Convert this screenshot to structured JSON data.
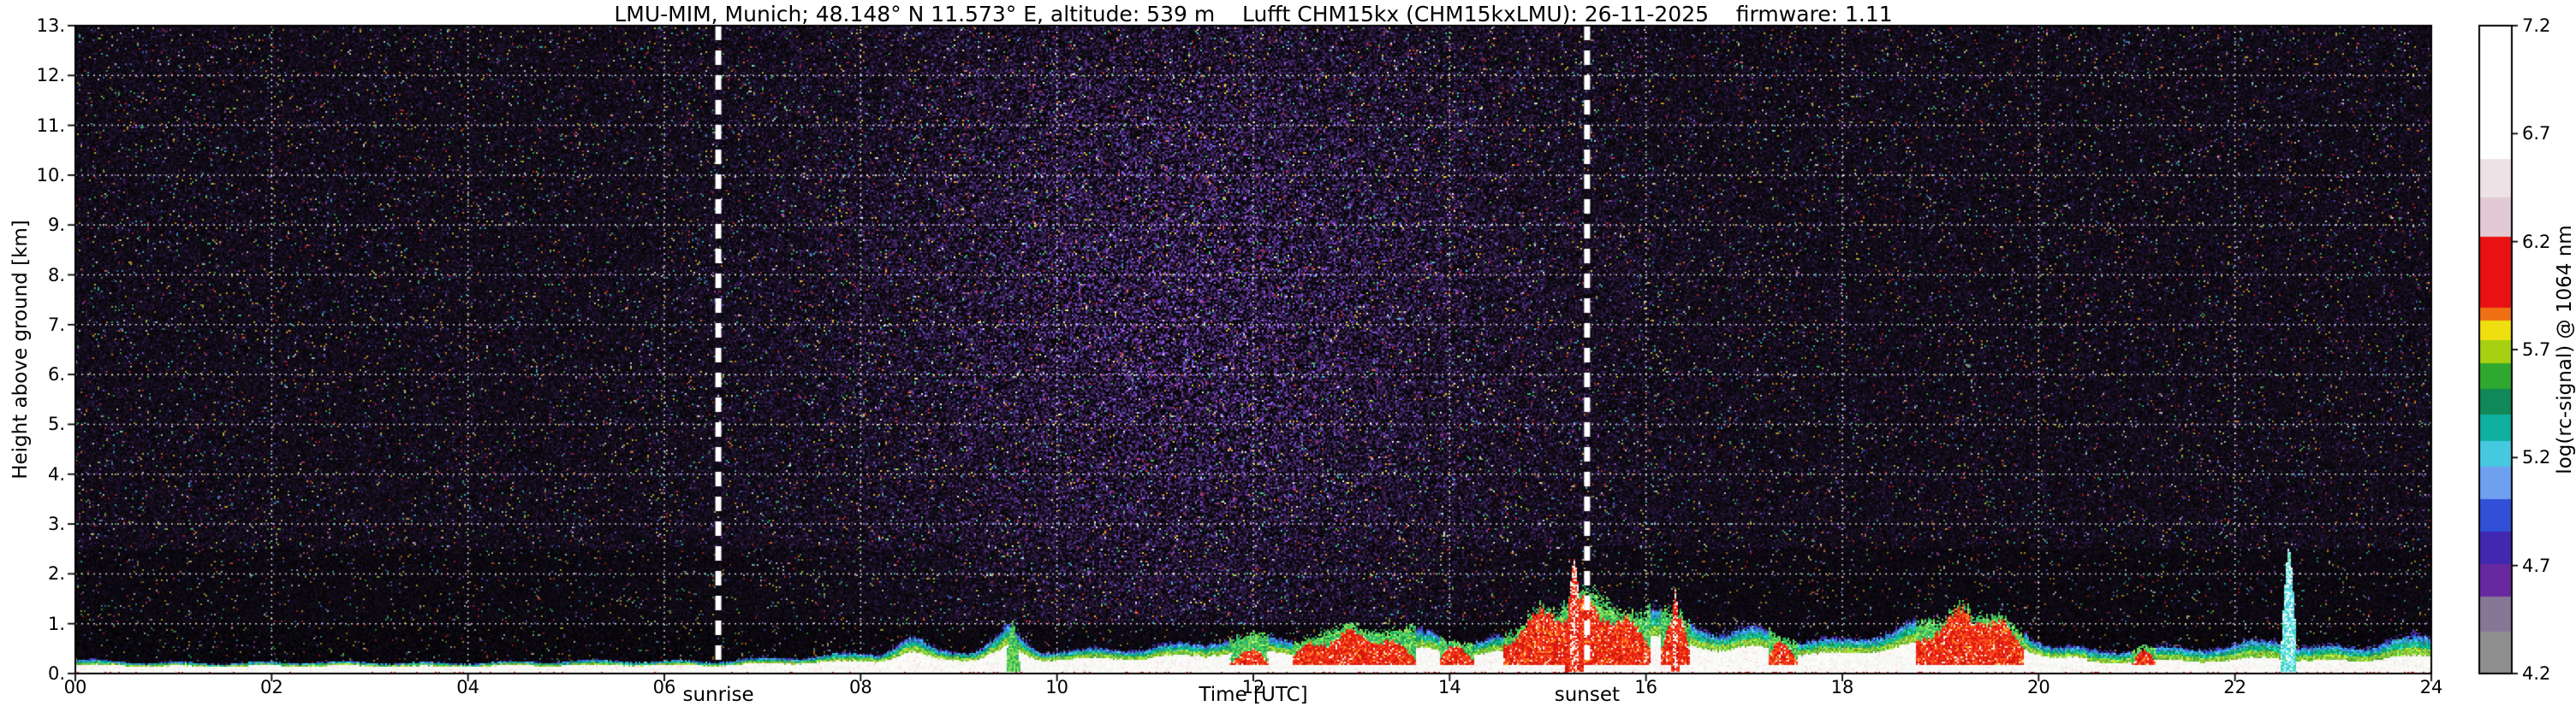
{
  "title": "LMU-MIM, Munich; 48.148° N 11.573° E, altitude: 539 m    Lufft CHM15kx (CHM15kxLMU): 26-11-2025    firmware: 1.11",
  "chart_data": {
    "type": "heatmap",
    "title": "LMU-MIM, Munich; 48.148° N 11.573° E, altitude: 539 m    Lufft CHM15kx (CHM15kxLMU): 26-11-2025    firmware: 1.11",
    "xlabel": "Time [UTC]",
    "ylabel": "Height above ground [km]",
    "xlim": [
      0,
      24
    ],
    "ylim": [
      0,
      13
    ],
    "grid": true,
    "xticks": [
      "00",
      "02",
      "04",
      "06",
      "08",
      "10",
      "12",
      "14",
      "16",
      "18",
      "20",
      "22",
      "24"
    ],
    "yticks": [
      "0.",
      "1.",
      "2.",
      "3.",
      "4.",
      "5.",
      "6.",
      "7.",
      "8.",
      "9.",
      "10.",
      "11.",
      "12.",
      "13."
    ],
    "annotations": [
      {
        "label": "sunrise",
        "x": 6.55
      },
      {
        "label": "sunset",
        "x": 15.4
      }
    ],
    "colorbar": {
      "label": "log(rc-signal) @ 1064 nm",
      "range": [
        4.2,
        7.2
      ],
      "ticks": [
        7.2,
        6.7,
        6.2,
        5.7,
        5.2,
        4.7,
        4.2
      ],
      "segments": [
        {
          "from": 0.795,
          "to": 1.0,
          "color": "#ffffff"
        },
        {
          "from": 0.735,
          "to": 0.795,
          "color": "#efe2e6"
        },
        {
          "from": 0.675,
          "to": 0.735,
          "color": "#e3c9d3"
        },
        {
          "from": 0.565,
          "to": 0.675,
          "color": "#e81212"
        },
        {
          "from": 0.545,
          "to": 0.565,
          "color": "#ef7012"
        },
        {
          "from": 0.515,
          "to": 0.545,
          "color": "#efdf10"
        },
        {
          "from": 0.48,
          "to": 0.515,
          "color": "#a6d012"
        },
        {
          "from": 0.44,
          "to": 0.48,
          "color": "#2fa830"
        },
        {
          "from": 0.4,
          "to": 0.44,
          "color": "#108858"
        },
        {
          "from": 0.36,
          "to": 0.4,
          "color": "#10b0a0"
        },
        {
          "from": 0.32,
          "to": 0.36,
          "color": "#46c8e0"
        },
        {
          "from": 0.27,
          "to": 0.32,
          "color": "#6f9fef"
        },
        {
          "from": 0.22,
          "to": 0.27,
          "color": "#3050d8"
        },
        {
          "from": 0.17,
          "to": 0.22,
          "color": "#4028b0"
        },
        {
          "from": 0.12,
          "to": 0.17,
          "color": "#6828a0"
        },
        {
          "from": 0.065,
          "to": 0.12,
          "color": "#877797"
        },
        {
          "from": 0.0,
          "to": 0.065,
          "color": "#8f8f8f"
        }
      ]
    },
    "features": {
      "description": "Aerosol boundary-layer top height [km] vs time [UTC], estimated from backscatter image",
      "layer_top": [
        [
          0,
          0.26
        ],
        [
          1,
          0.24
        ],
        [
          2,
          0.22
        ],
        [
          3,
          0.22
        ],
        [
          4,
          0.24
        ],
        [
          5,
          0.24
        ],
        [
          6,
          0.26
        ],
        [
          6.8,
          0.3
        ],
        [
          7.5,
          0.34
        ],
        [
          8.2,
          0.4
        ],
        [
          8.5,
          0.75
        ],
        [
          8.8,
          0.5
        ],
        [
          9.2,
          0.55
        ],
        [
          9.5,
          0.95
        ],
        [
          9.8,
          0.5
        ],
        [
          10.2,
          0.45
        ],
        [
          10.8,
          0.5
        ],
        [
          11.3,
          0.6
        ],
        [
          11.8,
          0.85
        ],
        [
          12.2,
          0.8
        ],
        [
          12.6,
          0.75
        ],
        [
          13.0,
          0.9
        ],
        [
          13.4,
          0.95
        ],
        [
          13.8,
          0.8
        ],
        [
          14.2,
          0.75
        ],
        [
          14.6,
          0.8
        ],
        [
          15.0,
          1.35
        ],
        [
          15.3,
          1.6
        ],
        [
          15.6,
          1.45
        ],
        [
          16.0,
          1.25
        ],
        [
          16.4,
          1.1
        ],
        [
          16.8,
          0.9
        ],
        [
          17.2,
          1.0
        ],
        [
          17.6,
          0.75
        ],
        [
          18.0,
          0.65
        ],
        [
          18.5,
          0.85
        ],
        [
          19.0,
          1.1
        ],
        [
          19.4,
          1.25
        ],
        [
          19.8,
          1.0
        ],
        [
          20.2,
          0.6
        ],
        [
          20.6,
          0.45
        ],
        [
          21.0,
          0.5
        ],
        [
          21.5,
          0.5
        ],
        [
          22.0,
          0.6
        ],
        [
          22.4,
          0.8
        ],
        [
          22.8,
          0.6
        ],
        [
          23.2,
          0.55
        ],
        [
          23.6,
          0.7
        ],
        [
          24,
          0.7
        ]
      ],
      "red_patches": [
        [
          11.75,
          12.15,
          0.45
        ],
        [
          12.4,
          13.65,
          0.75
        ],
        [
          13.9,
          14.25,
          0.55
        ],
        [
          14.55,
          16.05,
          1.3
        ],
        [
          16.15,
          16.45,
          1.0
        ],
        [
          17.25,
          17.55,
          0.6
        ],
        [
          18.75,
          19.85,
          1.15
        ],
        [
          20.95,
          21.2,
          0.4
        ]
      ],
      "spikes": [
        {
          "t": 9.55,
          "w": 0.07,
          "top": 1.05,
          "type": "green"
        },
        {
          "t": 15.27,
          "w": 0.09,
          "top": 2.3,
          "type": "red"
        },
        {
          "t": 16.3,
          "w": 0.05,
          "top": 1.7,
          "type": "red"
        },
        {
          "t": 22.55,
          "w": 0.08,
          "top": 2.55,
          "type": "cyan"
        }
      ]
    }
  }
}
